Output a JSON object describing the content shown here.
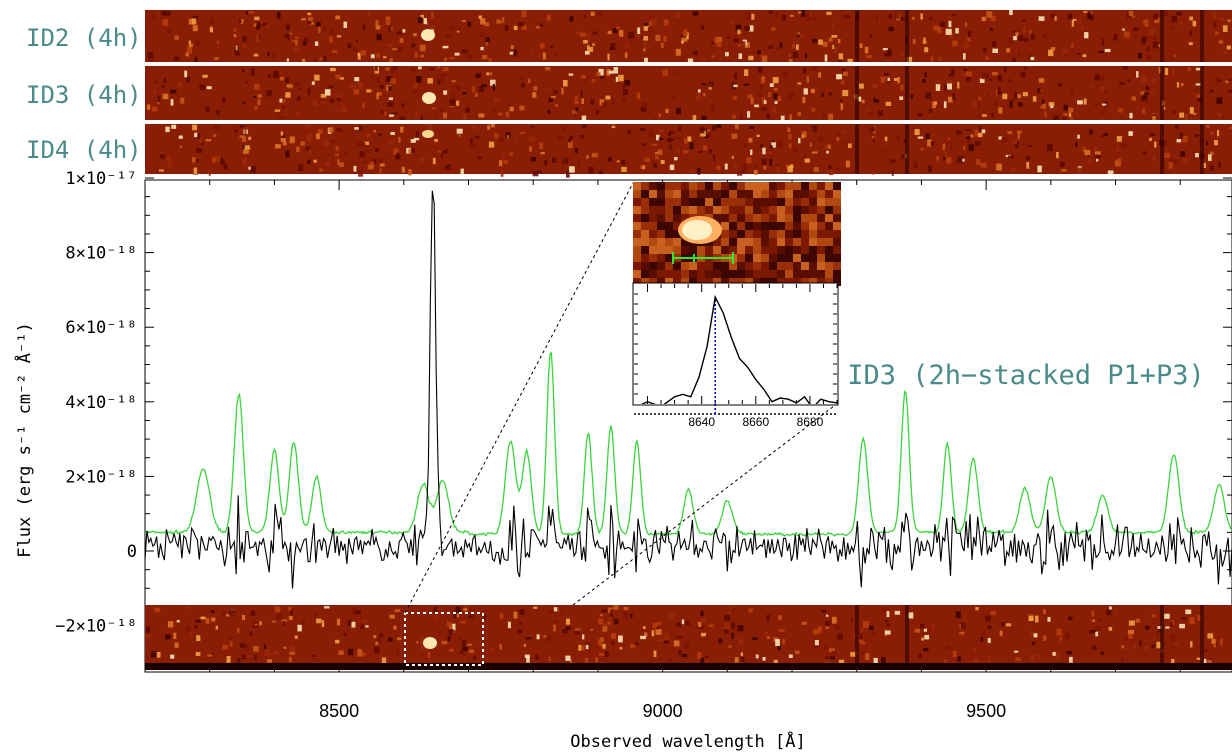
{
  "strips": [
    {
      "label": "ID2 (4h)"
    },
    {
      "label": "ID3 (4h)"
    },
    {
      "label": "ID4 (4h)"
    }
  ],
  "colors": {
    "label": "#4a8a8a",
    "data": "#000000",
    "sky": "#3cd43c",
    "strip_dark": "#6e0a00",
    "strip_bright": "#ffe08a",
    "marker": "#0000cc"
  },
  "chart_data": [
    {
      "type": "line",
      "title": "",
      "annotation": "ID3 (2h−stacked P1+P3)",
      "xlabel": "Observed wavelength [Å]",
      "ylabel": "Flux (erg s⁻¹ cm⁻² Å⁻¹)",
      "xlim": [
        8200,
        9880
      ],
      "ylim": [
        -3.6e-18,
        1e-17
      ],
      "xticks": [
        8500,
        9000,
        9500
      ],
      "yticks": [
        {
          "value": 1e-17,
          "label": "1×10⁻¹⁷"
        },
        {
          "value": 8e-18,
          "label": "8×10⁻¹⁸"
        },
        {
          "value": 6e-18,
          "label": "6×10⁻¹⁸"
        },
        {
          "value": 4e-18,
          "label": "4×10⁻¹⁸"
        },
        {
          "value": 2e-18,
          "label": "2×10⁻¹⁸"
        },
        {
          "value": 0,
          "label": "0"
        },
        {
          "value": -2e-18,
          "label": "−2×10⁻¹⁸"
        }
      ],
      "emission_line": {
        "x": 8645,
        "peak": 9.4e-18
      },
      "series": [
        {
          "color": "#000000"
        },
        {
          "color": "#3cd43c"
        }
      ]
    },
    {
      "type": "line",
      "title": "",
      "xlim": [
        8615,
        8690
      ],
      "xticks": [
        8640,
        8660,
        8680
      ],
      "peak_x": 8645,
      "x": [
        8615,
        8620,
        8625,
        8630,
        8633,
        8636,
        8639,
        8642,
        8645,
        8648,
        8651,
        8654,
        8657,
        8660,
        8663,
        8666,
        8669,
        8672,
        8675,
        8678,
        8681,
        8684,
        8687,
        8690
      ],
      "values": [
        0.05,
        0.1,
        0.06,
        0.14,
        0.16,
        0.14,
        0.3,
        0.55,
        0.95,
        0.82,
        0.62,
        0.45,
        0.38,
        0.28,
        0.2,
        0.1,
        0.13,
        0.12,
        0.09,
        0.14,
        0.05,
        0.12,
        0.1,
        0.09
      ]
    }
  ]
}
